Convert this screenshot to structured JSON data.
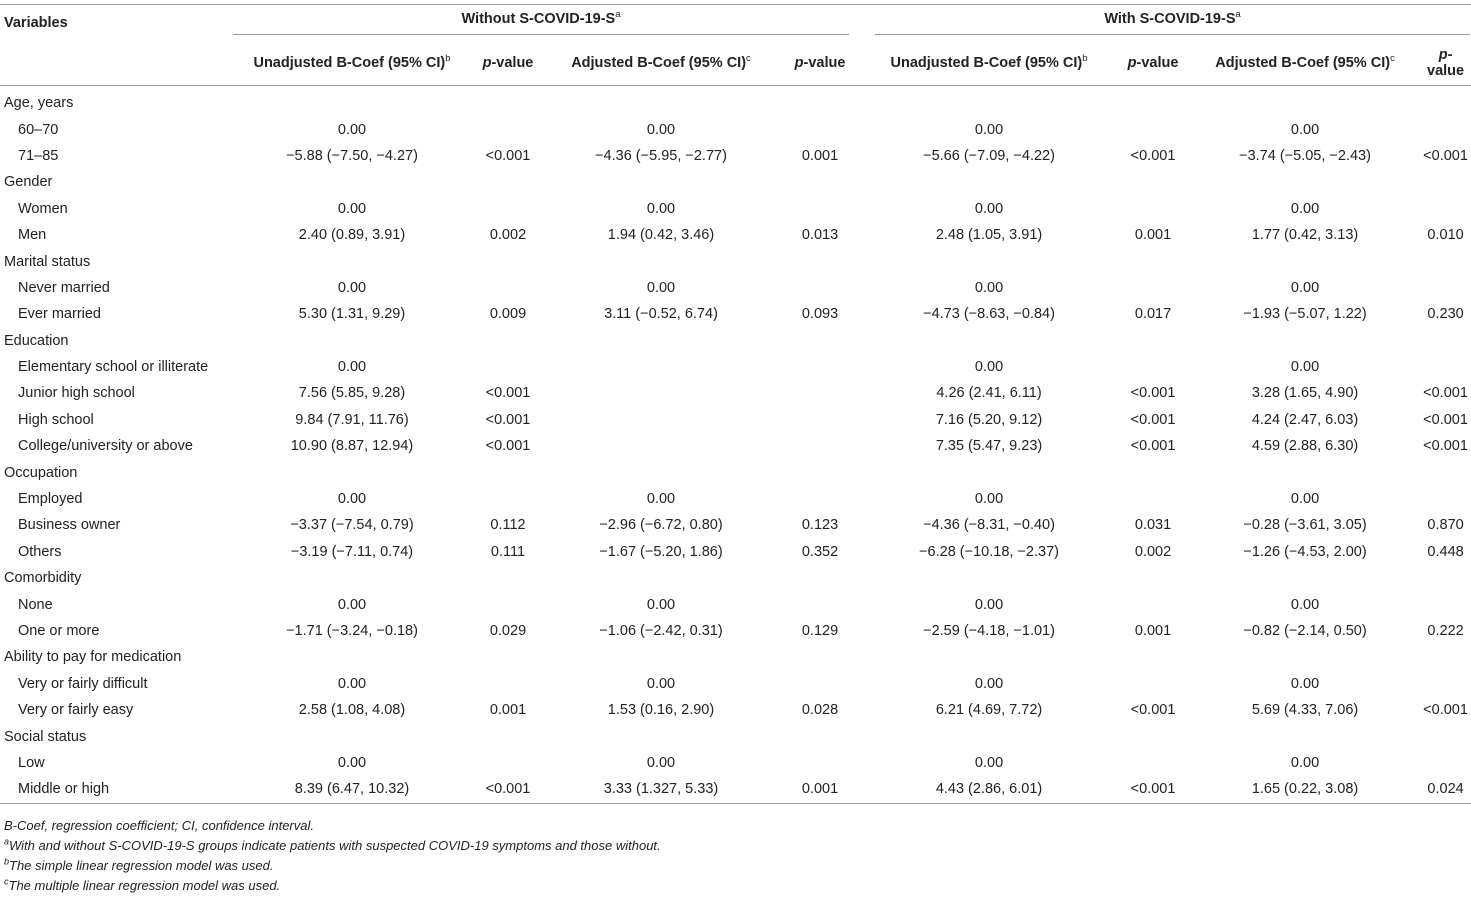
{
  "header": {
    "variables": "Variables",
    "group_without": "Without S-COVID-19-S",
    "group_without_sup": "a",
    "group_with": "With S-COVID-19-S",
    "group_with_sup": "a",
    "unadjusted": "Unadjusted B-Coef (95% CI)",
    "unadjusted_sup": "b",
    "adjusted": "Adjusted B-Coef (95% CI)",
    "adjusted_sup": "c",
    "pvalue_italic": "p",
    "pvalue_rest": "-value"
  },
  "rows": [
    {
      "type": "cat",
      "label": "Age, years",
      "v": [
        "",
        "",
        "",
        "",
        "",
        "",
        "",
        ""
      ]
    },
    {
      "type": "lvl",
      "label": "60–70",
      "v": [
        "0.00",
        "",
        "0.00",
        "",
        "0.00",
        "",
        "0.00",
        ""
      ]
    },
    {
      "type": "lvl",
      "label": "71–85",
      "v": [
        "−5.88 (−7.50, −4.27)",
        "<0.001",
        "−4.36 (−5.95, −2.77)",
        "0.001",
        "−5.66 (−7.09, −4.22)",
        "<0.001",
        "−3.74 (−5.05, −2.43)",
        "<0.001"
      ]
    },
    {
      "type": "cat",
      "label": "Gender",
      "v": [
        "",
        "",
        "",
        "",
        "",
        "",
        "",
        ""
      ]
    },
    {
      "type": "lvl",
      "label": "Women",
      "v": [
        "0.00",
        "",
        "0.00",
        "",
        "0.00",
        "",
        "0.00",
        ""
      ]
    },
    {
      "type": "lvl",
      "label": "Men",
      "v": [
        "2.40 (0.89, 3.91)",
        "0.002",
        "1.94 (0.42, 3.46)",
        "0.013",
        "2.48 (1.05, 3.91)",
        "0.001",
        "1.77 (0.42, 3.13)",
        "0.010"
      ]
    },
    {
      "type": "cat",
      "label": "Marital status",
      "v": [
        "",
        "",
        "",
        "",
        "",
        "",
        "",
        ""
      ]
    },
    {
      "type": "lvl",
      "label": "Never married",
      "v": [
        "0.00",
        "",
        "0.00",
        "",
        "0.00",
        "",
        "0.00",
        ""
      ]
    },
    {
      "type": "lvl",
      "label": "Ever married",
      "v": [
        "5.30 (1.31, 9.29)",
        "0.009",
        "3.11 (−0.52, 6.74)",
        "0.093",
        "−4.73 (−8.63, −0.84)",
        "0.017",
        "−1.93 (−5.07, 1.22)",
        "0.230"
      ]
    },
    {
      "type": "cat",
      "label": "Education",
      "v": [
        "",
        "",
        "",
        "",
        "",
        "",
        "",
        ""
      ]
    },
    {
      "type": "lvl",
      "label": "Elementary school or illiterate",
      "v": [
        "0.00",
        "",
        "",
        "",
        "0.00",
        "",
        "0.00",
        ""
      ]
    },
    {
      "type": "lvl",
      "label": "Junior high school",
      "v": [
        "7.56 (5.85, 9.28)",
        "<0.001",
        "",
        "",
        "4.26 (2.41, 6.11)",
        "<0.001",
        "3.28 (1.65, 4.90)",
        "<0.001"
      ]
    },
    {
      "type": "lvl",
      "label": "High school",
      "v": [
        "9.84 (7.91, 11.76)",
        "<0.001",
        "",
        "",
        "7.16 (5.20, 9.12)",
        "<0.001",
        "4.24 (2.47, 6.03)",
        "<0.001"
      ]
    },
    {
      "type": "lvl",
      "label": "College/university or above",
      "v": [
        "10.90 (8.87, 12.94)",
        "<0.001",
        "",
        "",
        "7.35 (5.47, 9.23)",
        "<0.001",
        "4.59 (2.88, 6.30)",
        "<0.001"
      ]
    },
    {
      "type": "cat",
      "label": "Occupation",
      "v": [
        "",
        "",
        "",
        "",
        "",
        "",
        "",
        ""
      ]
    },
    {
      "type": "lvl",
      "label": "Employed",
      "v": [
        "0.00",
        "",
        "0.00",
        "",
        "0.00",
        "",
        "0.00",
        ""
      ]
    },
    {
      "type": "lvl",
      "label": "Business owner",
      "v": [
        "−3.37 (−7.54, 0.79)",
        "0.112",
        "−2.96 (−6.72, 0.80)",
        "0.123",
        "−4.36 (−8.31, −0.40)",
        "0.031",
        "−0.28 (−3.61, 3.05)",
        "0.870"
      ]
    },
    {
      "type": "lvl",
      "label": "Others",
      "v": [
        "−3.19 (−7.11, 0.74)",
        "0.111",
        "−1.67 (−5.20, 1.86)",
        "0.352",
        "−6.28 (−10.18, −2.37)",
        "0.002",
        "−1.26 (−4.53, 2.00)",
        "0.448"
      ]
    },
    {
      "type": "cat",
      "label": "Comorbidity",
      "v": [
        "",
        "",
        "",
        "",
        "",
        "",
        "",
        ""
      ]
    },
    {
      "type": "lvl",
      "label": "None",
      "v": [
        "0.00",
        "",
        "0.00",
        "",
        "0.00",
        "",
        "0.00",
        ""
      ]
    },
    {
      "type": "lvl",
      "label": "One or more",
      "v": [
        "−1.71 (−3.24, −0.18)",
        "0.029",
        "−1.06 (−2.42, 0.31)",
        "0.129",
        "−2.59 (−4.18, −1.01)",
        "0.001",
        "−0.82 (−2.14, 0.50)",
        "0.222"
      ]
    },
    {
      "type": "cat",
      "label": "Ability to pay for medication",
      "v": [
        "",
        "",
        "",
        "",
        "",
        "",
        "",
        ""
      ]
    },
    {
      "type": "lvl",
      "label": "Very or fairly difficult",
      "v": [
        "0.00",
        "",
        "0.00",
        "",
        "0.00",
        "",
        "0.00",
        ""
      ]
    },
    {
      "type": "lvl",
      "label": "Very or fairly easy",
      "v": [
        "2.58 (1.08, 4.08)",
        "0.001",
        "1.53 (0.16, 2.90)",
        "0.028",
        "6.21 (4.69, 7.72)",
        "<0.001",
        "5.69 (4.33, 7.06)",
        "<0.001"
      ]
    },
    {
      "type": "cat",
      "label": "Social status",
      "v": [
        "",
        "",
        "",
        "",
        "",
        "",
        "",
        ""
      ]
    },
    {
      "type": "lvl",
      "label": "Low",
      "v": [
        "0.00",
        "",
        "0.00",
        "",
        "0.00",
        "",
        "0.00",
        ""
      ]
    },
    {
      "type": "lvl",
      "label": "Middle or high",
      "v": [
        "8.39 (6.47, 10.32)",
        "<0.001",
        "3.33 (1.327, 5.33)",
        "0.001",
        "4.43 (2.86, 6.01)",
        "<0.001",
        "1.65 (0.22, 3.08)",
        "0.024"
      ]
    }
  ],
  "notes": {
    "n1": "B-Coef, regression coefficient; CI, confidence interval.",
    "n2_sup": "a",
    "n2": "With and without S-COVID-19-S groups indicate patients with suspected COVID-19 symptoms and those without.",
    "n3_sup": "b",
    "n3": "The simple linear regression model was used.",
    "n4_sup": "c",
    "n4": "The multiple linear regression model was used."
  }
}
